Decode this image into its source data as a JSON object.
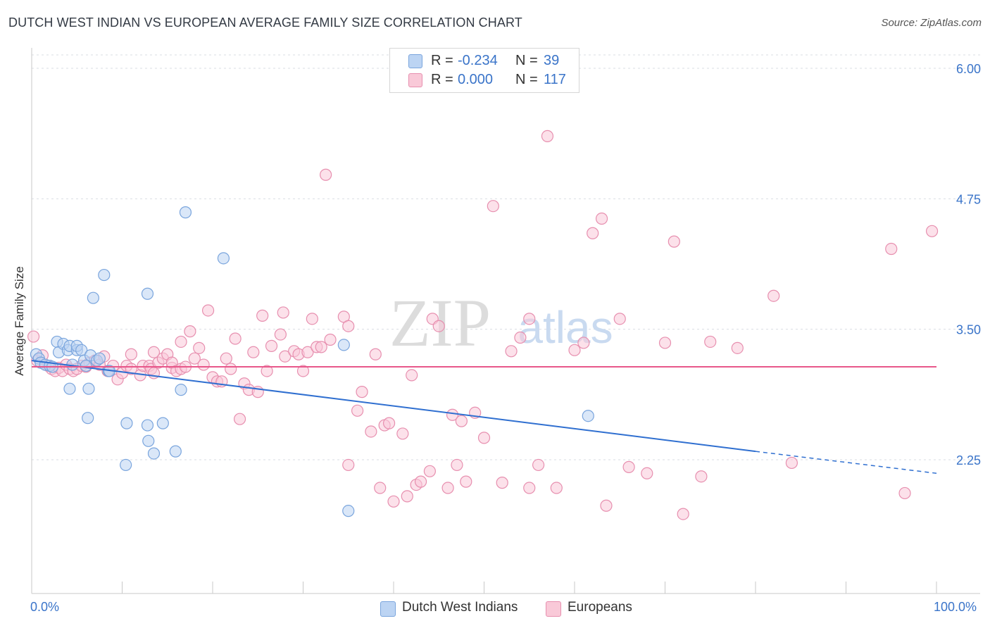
{
  "title": "DUTCH WEST INDIAN VS EUROPEAN AVERAGE FAMILY SIZE CORRELATION CHART",
  "source": "Source: ZipAtlas.com",
  "watermark": {
    "zip": "ZIP",
    "atlas": "atlas"
  },
  "legend": {
    "rows": [
      {
        "r_label": "R =",
        "r_value": "-0.234",
        "n_label": "N =",
        "n_value": "39",
        "color": "#a9c8ef",
        "border": "#6f9fdc"
      },
      {
        "r_label": "R =",
        "r_value": "0.000",
        "n_label": "N =",
        "n_value": "117",
        "color": "#f7c0d2",
        "border": "#e98aac"
      }
    ]
  },
  "bottom_legend": [
    {
      "label": "Dutch West Indians",
      "color": "#bcd4f3",
      "border": "#7aa5dd"
    },
    {
      "label": "Europeans",
      "color": "#f9c9d8",
      "border": "#e78faf"
    }
  ],
  "chart_data": {
    "type": "scatter",
    "ylabel": "Average Family Size",
    "x_tick_labels": [
      "0.0%",
      "100.0%"
    ],
    "y_ticks": [
      2.25,
      3.5,
      4.75,
      6.0
    ],
    "y_tick_labels": [
      "2.25",
      "3.50",
      "4.75",
      "6.00"
    ],
    "xlim": [
      0,
      100
    ],
    "ylim": [
      1.25,
      6.15
    ],
    "grid": "dashed horizontal",
    "series": [
      {
        "name": "Dutch West Indians",
        "color": "#7aa5dd",
        "fill": "#bcd4f3",
        "trend": {
          "x0": 0,
          "y0": 3.2,
          "x1": 80,
          "y1": 2.33,
          "dash_to_x": 100,
          "dash_to_y": 2.12,
          "color": "#2f6fd0"
        },
        "points": [
          [
            0.5,
            3.26
          ],
          [
            0.8,
            3.22
          ],
          [
            1.0,
            3.18
          ],
          [
            1.5,
            3.16
          ],
          [
            2.0,
            3.15
          ],
          [
            2.3,
            3.14
          ],
          [
            2.8,
            3.38
          ],
          [
            3.0,
            3.28
          ],
          [
            3.5,
            3.36
          ],
          [
            4.0,
            3.3
          ],
          [
            4.2,
            3.34
          ],
          [
            4.5,
            3.16
          ],
          [
            4.2,
            2.93
          ],
          [
            5.0,
            3.3
          ],
          [
            5.0,
            3.34
          ],
          [
            5.5,
            3.3
          ],
          [
            5.8,
            3.2
          ],
          [
            6.0,
            3.15
          ],
          [
            6.5,
            3.25
          ],
          [
            6.3,
            2.93
          ],
          [
            6.2,
            2.65
          ],
          [
            6.8,
            3.8
          ],
          [
            7.2,
            3.2
          ],
          [
            7.5,
            3.22
          ],
          [
            8.0,
            4.02
          ],
          [
            8.5,
            3.1
          ],
          [
            8.6,
            3.1
          ],
          [
            10.5,
            2.6
          ],
          [
            10.4,
            2.2
          ],
          [
            12.8,
            2.58
          ],
          [
            12.8,
            3.84
          ],
          [
            12.9,
            2.43
          ],
          [
            13.5,
            2.31
          ],
          [
            14.5,
            2.6
          ],
          [
            15.9,
            2.33
          ],
          [
            16.5,
            2.92
          ],
          [
            17.0,
            4.62
          ],
          [
            21.2,
            4.18
          ],
          [
            34.5,
            3.35
          ],
          [
            35.0,
            1.76
          ],
          [
            61.5,
            2.67
          ]
        ]
      },
      {
        "name": "Europeans",
        "color": "#e78faf",
        "fill": "#f9c9d8",
        "trend": {
          "x0": 0,
          "y0": 3.14,
          "x1": 100,
          "y1": 3.14,
          "color": "#e8578a"
        },
        "points": [
          [
            0.2,
            3.43
          ],
          [
            0.6,
            3.2
          ],
          [
            1.2,
            3.25
          ],
          [
            1.8,
            3.15
          ],
          [
            2.2,
            3.12
          ],
          [
            2.6,
            3.1
          ],
          [
            3.0,
            3.13
          ],
          [
            3.4,
            3.1
          ],
          [
            3.8,
            3.16
          ],
          [
            4.2,
            3.12
          ],
          [
            4.6,
            3.1
          ],
          [
            5.0,
            3.12
          ],
          [
            5.5,
            3.15
          ],
          [
            6.0,
            3.14
          ],
          [
            6.4,
            3.18
          ],
          [
            7.0,
            3.2
          ],
          [
            7.5,
            3.16
          ],
          [
            8.0,
            3.24
          ],
          [
            8.4,
            3.1
          ],
          [
            9.0,
            3.15
          ],
          [
            9.5,
            3.02
          ],
          [
            10.0,
            3.08
          ],
          [
            10.5,
            3.15
          ],
          [
            11.0,
            3.12
          ],
          [
            11.0,
            3.26
          ],
          [
            12.0,
            3.06
          ],
          [
            12.3,
            3.15
          ],
          [
            13.0,
            3.15
          ],
          [
            13.2,
            3.12
          ],
          [
            13.5,
            3.08
          ],
          [
            13.5,
            3.28
          ],
          [
            14.0,
            3.18
          ],
          [
            14.5,
            3.22
          ],
          [
            15.0,
            3.26
          ],
          [
            15.5,
            3.13
          ],
          [
            15.5,
            3.18
          ],
          [
            16.0,
            3.1
          ],
          [
            16.5,
            3.12
          ],
          [
            16.5,
            3.38
          ],
          [
            17.0,
            3.14
          ],
          [
            17.5,
            3.48
          ],
          [
            18.0,
            3.22
          ],
          [
            18.5,
            3.32
          ],
          [
            19.0,
            3.16
          ],
          [
            19.5,
            3.68
          ],
          [
            20.0,
            3.04
          ],
          [
            20.5,
            3.0
          ],
          [
            21.0,
            3.0
          ],
          [
            21.5,
            3.22
          ],
          [
            22.0,
            3.12
          ],
          [
            22.5,
            3.41
          ],
          [
            23.0,
            2.64
          ],
          [
            23.5,
            2.98
          ],
          [
            24.0,
            2.92
          ],
          [
            24.5,
            3.28
          ],
          [
            25.0,
            2.9
          ],
          [
            25.5,
            3.63
          ],
          [
            26.0,
            3.1
          ],
          [
            26.5,
            3.34
          ],
          [
            27.5,
            3.45
          ],
          [
            27.8,
            3.66
          ],
          [
            28.0,
            3.24
          ],
          [
            29.0,
            3.29
          ],
          [
            29.5,
            3.26
          ],
          [
            30.0,
            3.1
          ],
          [
            30.5,
            3.28
          ],
          [
            31.0,
            3.6
          ],
          [
            31.5,
            3.33
          ],
          [
            32.0,
            3.33
          ],
          [
            32.5,
            4.98
          ],
          [
            33.0,
            3.4
          ],
          [
            34.5,
            3.62
          ],
          [
            35.0,
            3.53
          ],
          [
            35.0,
            2.2
          ],
          [
            36.0,
            2.72
          ],
          [
            36.5,
            2.9
          ],
          [
            37.5,
            2.52
          ],
          [
            38.0,
            3.26
          ],
          [
            38.5,
            1.98
          ],
          [
            39.0,
            2.58
          ],
          [
            39.5,
            2.6
          ],
          [
            40.0,
            1.85
          ],
          [
            41.0,
            2.5
          ],
          [
            41.5,
            1.9
          ],
          [
            42.0,
            3.06
          ],
          [
            42.5,
            2.01
          ],
          [
            43.0,
            2.04
          ],
          [
            44.0,
            2.14
          ],
          [
            44.3,
            3.6
          ],
          [
            45.0,
            3.53
          ],
          [
            46.0,
            1.98
          ],
          [
            46.5,
            2.68
          ],
          [
            47.0,
            2.2
          ],
          [
            47.5,
            2.62
          ],
          [
            48.0,
            2.04
          ],
          [
            49.0,
            2.7
          ],
          [
            50.0,
            2.46
          ],
          [
            51.0,
            4.68
          ],
          [
            52.0,
            2.03
          ],
          [
            53.0,
            3.29
          ],
          [
            54.0,
            3.42
          ],
          [
            55.0,
            1.98
          ],
          [
            55.0,
            3.6
          ],
          [
            56.0,
            2.2
          ],
          [
            57.0,
            5.35
          ],
          [
            58.0,
            1.98
          ],
          [
            60.0,
            3.3
          ],
          [
            61.0,
            3.37
          ],
          [
            62.0,
            4.42
          ],
          [
            63.0,
            4.56
          ],
          [
            63.5,
            1.81
          ],
          [
            65.0,
            3.6
          ],
          [
            66.0,
            2.18
          ],
          [
            68.0,
            2.12
          ],
          [
            70.0,
            3.37
          ],
          [
            71.0,
            4.34
          ],
          [
            72.0,
            1.73
          ],
          [
            74.0,
            2.09
          ],
          [
            75.0,
            3.38
          ],
          [
            78.0,
            3.32
          ],
          [
            82.0,
            3.82
          ],
          [
            84.0,
            2.22
          ],
          [
            95.0,
            4.27
          ],
          [
            96.5,
            1.93
          ],
          [
            99.5,
            4.44
          ]
        ]
      }
    ]
  }
}
